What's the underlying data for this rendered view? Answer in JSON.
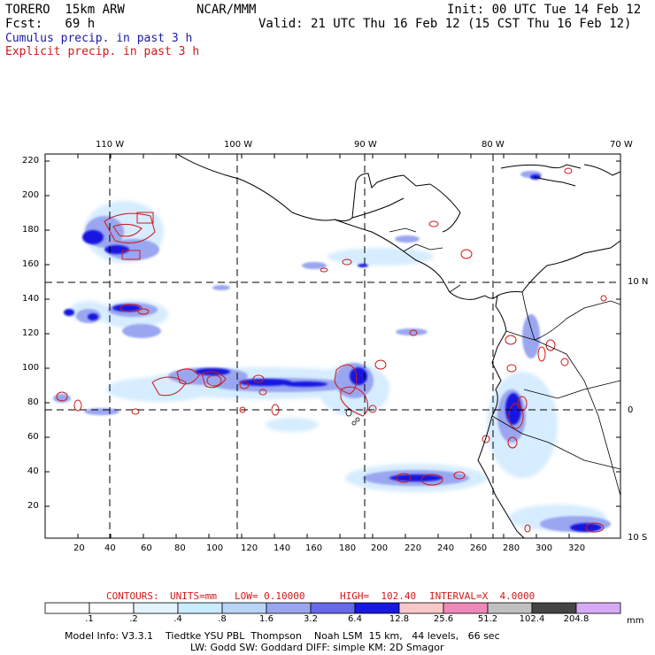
{
  "header": {
    "model": "TORERO  15km ARW",
    "org": "NCAR/MMM",
    "init": "Init: 00 UTC Tue 14 Feb 12",
    "fcst": "Fcst:   69 h",
    "valid": "Valid: 21 UTC Thu 16 Feb 12 (15 CST Thu 16 Feb 12)",
    "legend_cumulus": "Cumulus precip. in past 3 h",
    "legend_explicit": "Explicit precip. in past 3 h"
  },
  "colors": {
    "cumulus": "#1a1aa6",
    "explicit": "#d01818",
    "scale": [
      "#ffffff",
      "#ffffff",
      "#e3f4ff",
      "#c9ecff",
      "#b9d4f7",
      "#9aa6f0",
      "#6868ea",
      "#1818e0",
      "#f8c8c8",
      "#f088b8",
      "#c0c0c0",
      "#444444",
      "#d7aaf5"
    ]
  },
  "map": {
    "top_labels": [
      "110 W",
      "100 W",
      "90 W",
      "80 W",
      "70 W"
    ],
    "right_labels": [
      "10 N",
      "0",
      "10 S"
    ],
    "y_ticks": [
      "220",
      "200",
      "180",
      "160",
      "140",
      "120",
      "100",
      "80",
      "60",
      "40",
      "20"
    ],
    "x_ticks": [
      "20",
      "40",
      "60",
      "80",
      "100",
      "120",
      "140",
      "160",
      "180",
      "200",
      "220",
      "240",
      "260",
      "280",
      "300",
      "320"
    ]
  },
  "contour_info": {
    "label": "CONTOURS:",
    "units": "UNITS=mm",
    "low": "LOW= 0.10000",
    "high": "HIGH=  102.40",
    "interval": "INTERVAL=X  4.0000"
  },
  "colorbar": {
    "labels": [
      ".1",
      ".2",
      ".4",
      ".8",
      "1.6",
      "3.2",
      "6.4",
      "12.8",
      "25.6",
      "51.2",
      "102.4",
      "204.8"
    ],
    "unit": "mm"
  },
  "footer": {
    "line1": "Model Info: V3.3.1    Tiedtke YSU PBL  Thompson    Noah LSM  15 km,   44 levels,   66 sec",
    "line2": "LW: Godd SW: Goddard DIFF: simple KM: 2D Smagor"
  }
}
